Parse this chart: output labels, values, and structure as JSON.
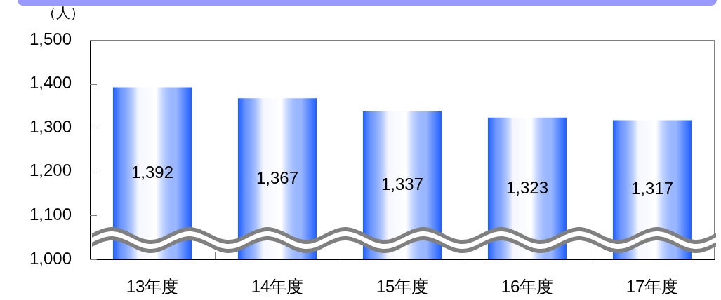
{
  "chart_data": {
    "type": "bar",
    "ylabel": "（人）",
    "categories": [
      "13年度",
      "14年度",
      "15年度",
      "16年度",
      "17年度"
    ],
    "values": [
      1392,
      1367,
      1337,
      1323,
      1317
    ],
    "color": "#1f5fff",
    "value_labels": [
      "1,392",
      "1,367",
      "1,337",
      "1,323",
      "1,317"
    ],
    "ylim": [
      1000,
      1500
    ],
    "yticks": [
      {
        "value": 1000,
        "label": "1,000"
      },
      {
        "value": 1100,
        "label": "1,100"
      },
      {
        "value": 1200,
        "label": "1,200"
      },
      {
        "value": 1300,
        "label": "1,300"
      },
      {
        "value": 1400,
        "label": "1,400"
      },
      {
        "value": 1500,
        "label": "1,500"
      }
    ],
    "grid": false
  }
}
